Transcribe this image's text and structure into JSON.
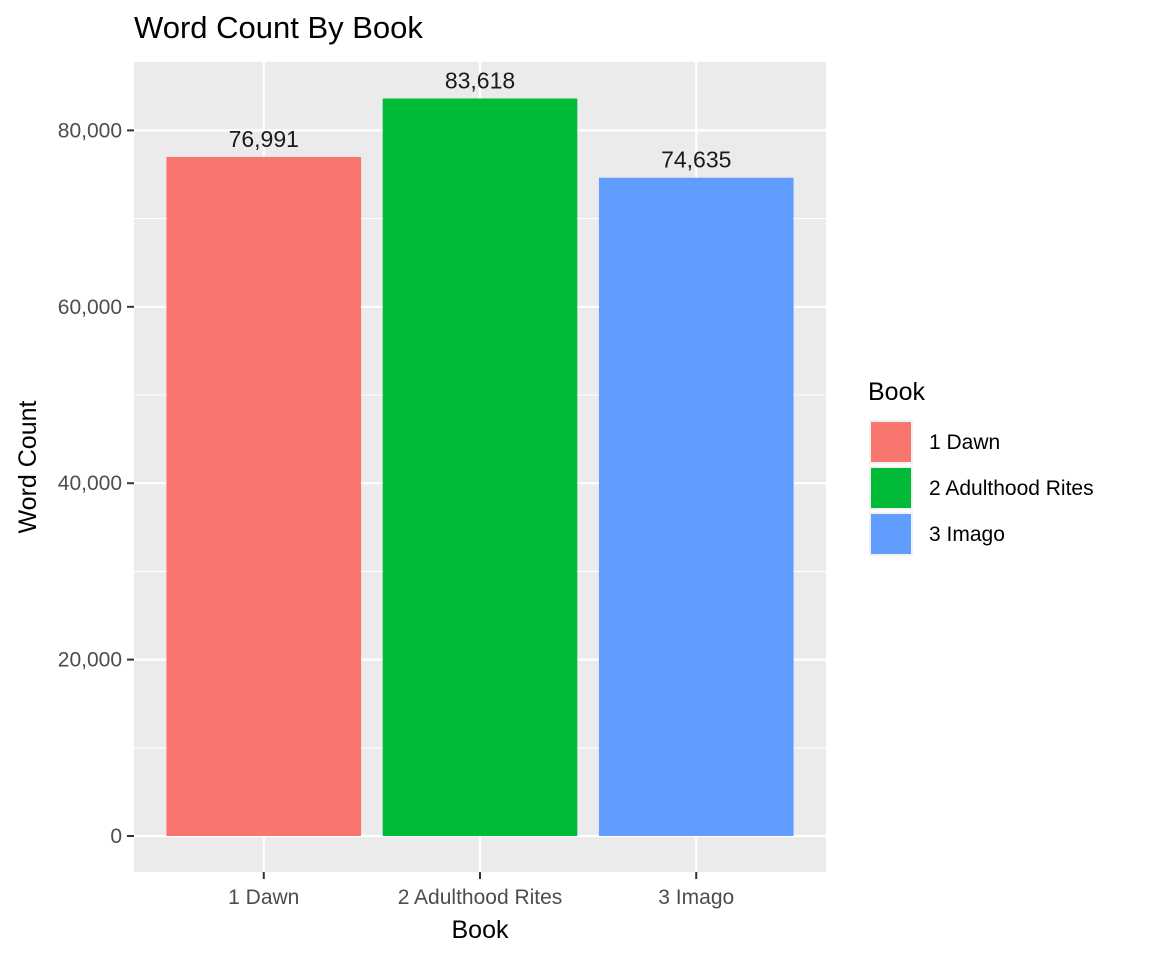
{
  "chart_data": {
    "type": "bar",
    "title": "Word Count By Book",
    "xlabel": "Book",
    "ylabel": "Word Count",
    "categories": [
      "1 Dawn",
      "2 Adulthood Rites",
      "3 Imago"
    ],
    "values": [
      76991,
      83618,
      74635
    ],
    "value_labels": [
      "76,991",
      "83,618",
      "74,635"
    ],
    "colors": [
      "#F8766D",
      "#00BA38",
      "#619CFF"
    ],
    "ylim": [
      0,
      87800
    ],
    "yticks": [
      0,
      20000,
      40000,
      60000,
      80000
    ],
    "ytick_labels": [
      "0",
      "20,000",
      "40,000",
      "60,000",
      "80,000"
    ],
    "grid": true,
    "panel_background": "#EBEBEB",
    "legend": {
      "title": "Book",
      "position": "right",
      "items": [
        "1 Dawn",
        "2 Adulthood Rites",
        "3 Imago"
      ]
    }
  }
}
